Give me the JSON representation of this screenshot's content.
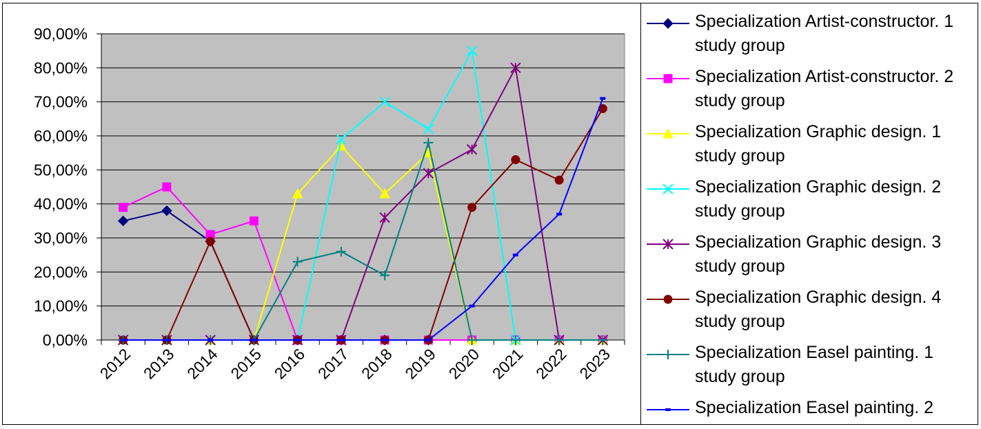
{
  "chart_data": {
    "type": "line",
    "categories": [
      "2012",
      "2013",
      "2014",
      "2015",
      "2016",
      "2017",
      "2018",
      "2019",
      "2020",
      "2021",
      "2022",
      "2023"
    ],
    "y_ticks": [
      "0,00%",
      "10,00%",
      "20,00%",
      "30,00%",
      "40,00%",
      "50,00%",
      "60,00%",
      "70,00%",
      "80,00%",
      "90,00%"
    ],
    "ylim": [
      0,
      90
    ],
    "y_unit": "percent",
    "grid": true,
    "plot_background": "#c0c0c0",
    "legend_position": "right",
    "series": [
      {
        "name": "Specialization Artist-constructor. 1 study group",
        "color": "#000080",
        "marker": "diamond",
        "values": [
          35,
          38,
          29,
          0,
          0,
          0,
          0,
          0,
          0,
          0,
          0,
          0
        ]
      },
      {
        "name": "Specialization Artist-constructor. 2 study group",
        "color": "#ff00ff",
        "marker": "square",
        "values": [
          39,
          45,
          31,
          35,
          0,
          0,
          0,
          0,
          0,
          0,
          0,
          0
        ]
      },
      {
        "name": "Specialization Graphic design. 1 study group",
        "color": "#ffff00",
        "marker": "triangle",
        "values": [
          0,
          0,
          0,
          0,
          43,
          57,
          43,
          55,
          0,
          0,
          0,
          0
        ]
      },
      {
        "name": "Specialization Graphic design. 2 study group",
        "color": "#00ffff",
        "marker": "x",
        "values": [
          0,
          0,
          0,
          0,
          0,
          59,
          70,
          62,
          85,
          0,
          0,
          0
        ]
      },
      {
        "name": "Specialization Graphic design. 3 study group",
        "color": "#800080",
        "marker": "asterisk",
        "values": [
          0,
          0,
          0,
          0,
          0,
          0,
          36,
          49,
          56,
          80,
          0,
          0
        ]
      },
      {
        "name": "Specialization Graphic design. 4 study group",
        "color": "#800000",
        "marker": "circle",
        "values": [
          0,
          0,
          29,
          0,
          0,
          0,
          0,
          0,
          39,
          53,
          47,
          68
        ]
      },
      {
        "name": "Specialization Easel painting. 1 study group",
        "color": "#008080",
        "marker": "plus",
        "values": [
          0,
          0,
          0,
          0,
          23,
          26,
          19,
          58,
          0,
          0,
          0,
          0
        ]
      },
      {
        "name": "Specialization Easel painting. 2 study group",
        "color": "#0000ff",
        "marker": "dash",
        "values": [
          0,
          0,
          0,
          0,
          0,
          0,
          0,
          0,
          10,
          25,
          37,
          71
        ]
      }
    ]
  }
}
